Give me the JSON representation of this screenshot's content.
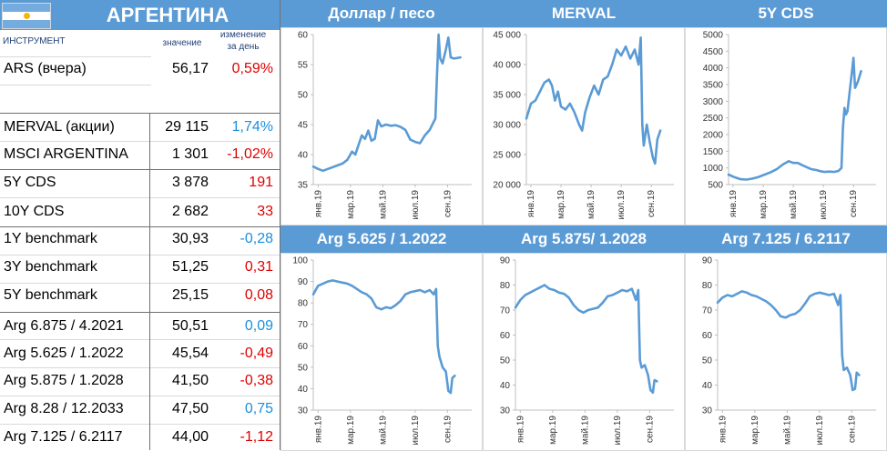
{
  "header": {
    "country": "АРГЕНТИНА",
    "col_instrument": "ИНСТРУМЕНТ",
    "col_value": "значение",
    "col_change": "изменение за день",
    "col_change_l1": "изменение",
    "col_change_l2": "за день"
  },
  "colors": {
    "accent": "#5b9bd5",
    "negative": "#e00000",
    "positive": "#1a8fe0",
    "line": "#5b9bd5"
  },
  "table": [
    {
      "name": "ARS (вчера)",
      "value": "56,17",
      "change": "0,59%",
      "dir": "neg"
    },
    {
      "name": "MERVAL (акции)",
      "value": "29 115",
      "change": "1,74%",
      "dir": "pos"
    },
    {
      "name": "MSCI ARGENTINA",
      "value": "1 301",
      "change": "-1,02%",
      "dir": "neg"
    },
    {
      "name": "5Y CDS",
      "value": "3 878",
      "change": "191",
      "dir": "neg"
    },
    {
      "name": "10Y CDS",
      "value": "2 682",
      "change": "33",
      "dir": "neg"
    },
    {
      "name": "1Y benchmark",
      "value": "30,93",
      "change": "-0,28",
      "dir": "pos"
    },
    {
      "name": "3Y benchmark",
      "value": "51,25",
      "change": "0,31",
      "dir": "neg"
    },
    {
      "name": "5Y benchmark",
      "value": "25,15",
      "change": "0,08",
      "dir": "neg"
    },
    {
      "name": "Arg 6.875 / 4.2021",
      "value": "50,51",
      "change": "0,09",
      "dir": "pos"
    },
    {
      "name": "Arg 5.625 / 1.2022",
      "value": "45,54",
      "change": "-0,49",
      "dir": "neg"
    },
    {
      "name": "Arg 5.875 / 1.2028",
      "value": "41,50",
      "change": "-0,38",
      "dir": "neg"
    },
    {
      "name": "Arg 8.28 / 12.2033",
      "value": "47,50",
      "change": "0,75",
      "dir": "pos"
    },
    {
      "name": "Arg 7.125 / 6.2117",
      "value": "44,00",
      "change": "-1,12",
      "dir": "neg"
    }
  ],
  "chart_data": [
    {
      "type": "line",
      "title": "Доллар / песо",
      "x_ticks": [
        "янв.19",
        "мар.19",
        "май.19",
        "июл.19",
        "сен.19"
      ],
      "y_ticks": [
        "35",
        "40",
        "45",
        "50",
        "55",
        "60"
      ],
      "ylim": [
        35,
        60
      ],
      "x_range": [
        0,
        9.8
      ],
      "points": [
        [
          0,
          38
        ],
        [
          0.3,
          37.6
        ],
        [
          0.6,
          37.3
        ],
        [
          0.9,
          37.6
        ],
        [
          1.2,
          37.9
        ],
        [
          1.5,
          38.2
        ],
        [
          1.8,
          38.5
        ],
        [
          2.1,
          39.1
        ],
        [
          2.4,
          40.5
        ],
        [
          2.6,
          40.0
        ],
        [
          2.8,
          41.6
        ],
        [
          3.0,
          43.2
        ],
        [
          3.2,
          42.6
        ],
        [
          3.4,
          44.0
        ],
        [
          3.6,
          42.3
        ],
        [
          3.8,
          42.6
        ],
        [
          4.0,
          45.7
        ],
        [
          4.2,
          44.7
        ],
        [
          4.5,
          45.0
        ],
        [
          4.8,
          44.8
        ],
        [
          5.1,
          44.9
        ],
        [
          5.4,
          44.6
        ],
        [
          5.7,
          44.1
        ],
        [
          6.0,
          42.5
        ],
        [
          6.3,
          42.1
        ],
        [
          6.6,
          41.9
        ],
        [
          6.9,
          43.2
        ],
        [
          7.2,
          44.1
        ],
        [
          7.4,
          45.2
        ],
        [
          7.55,
          46.0
        ],
        [
          7.65,
          53.0
        ],
        [
          7.75,
          60.0
        ],
        [
          7.85,
          56.0
        ],
        [
          8.0,
          55.2
        ],
        [
          8.2,
          57.5
        ],
        [
          8.35,
          59.5
        ],
        [
          8.5,
          56.2
        ],
        [
          8.7,
          56.0
        ],
        [
          9.1,
          56.2
        ]
      ]
    },
    {
      "type": "line",
      "title": "MERVAL",
      "x_ticks": [
        "янв.19",
        "мар.19",
        "май.19",
        "июл.19",
        "сен.19"
      ],
      "y_ticks": [
        "20 000",
        "25 000",
        "30 000",
        "35 000",
        "40 000",
        "45 000"
      ],
      "ylim": [
        20000,
        45000
      ],
      "x_range": [
        0,
        9.8
      ],
      "points": [
        [
          0,
          31000
        ],
        [
          0.3,
          33500
        ],
        [
          0.6,
          34000
        ],
        [
          0.9,
          35500
        ],
        [
          1.2,
          37000
        ],
        [
          1.5,
          37500
        ],
        [
          1.7,
          36500
        ],
        [
          1.9,
          34000
        ],
        [
          2.1,
          35500
        ],
        [
          2.3,
          33000
        ],
        [
          2.6,
          32500
        ],
        [
          2.9,
          33500
        ],
        [
          3.2,
          32000
        ],
        [
          3.5,
          30000
        ],
        [
          3.7,
          29000
        ],
        [
          3.9,
          32000
        ],
        [
          4.2,
          34500
        ],
        [
          4.5,
          36500
        ],
        [
          4.8,
          35000
        ],
        [
          5.1,
          37500
        ],
        [
          5.4,
          38000
        ],
        [
          5.7,
          40000
        ],
        [
          6.0,
          42500
        ],
        [
          6.3,
          41500
        ],
        [
          6.6,
          43000
        ],
        [
          6.9,
          41000
        ],
        [
          7.2,
          42500
        ],
        [
          7.45,
          40000
        ],
        [
          7.6,
          44500
        ],
        [
          7.7,
          30000
        ],
        [
          7.8,
          26500
        ],
        [
          8.0,
          30000
        ],
        [
          8.2,
          27000
        ],
        [
          8.4,
          24500
        ],
        [
          8.55,
          23500
        ],
        [
          8.7,
          27500
        ],
        [
          8.9,
          29000
        ]
      ]
    },
    {
      "type": "line",
      "title": "5Y CDS",
      "x_ticks": [
        "янв.19",
        "мар.19",
        "май.19",
        "июл.19",
        "сен.19"
      ],
      "y_ticks": [
        "500",
        "1000",
        "1500",
        "2000",
        "2500",
        "3000",
        "3500",
        "4000",
        "4500",
        "5000"
      ],
      "ylim": [
        500,
        5000
      ],
      "x_range": [
        0,
        9.8
      ],
      "points": [
        [
          0,
          800
        ],
        [
          0.4,
          720
        ],
        [
          0.8,
          660
        ],
        [
          1.2,
          650
        ],
        [
          1.6,
          680
        ],
        [
          2.0,
          730
        ],
        [
          2.4,
          800
        ],
        [
          2.8,
          870
        ],
        [
          3.2,
          960
        ],
        [
          3.6,
          1100
        ],
        [
          4.0,
          1200
        ],
        [
          4.3,
          1150
        ],
        [
          4.6,
          1150
        ],
        [
          4.9,
          1080
        ],
        [
          5.2,
          1020
        ],
        [
          5.5,
          960
        ],
        [
          5.8,
          940
        ],
        [
          6.1,
          900
        ],
        [
          6.4,
          880
        ],
        [
          6.7,
          890
        ],
        [
          7.0,
          880
        ],
        [
          7.3,
          910
        ],
        [
          7.5,
          1000
        ],
        [
          7.6,
          2200
        ],
        [
          7.7,
          2800
        ],
        [
          7.8,
          2600
        ],
        [
          7.9,
          2700
        ],
        [
          8.1,
          3500
        ],
        [
          8.2,
          3900
        ],
        [
          8.3,
          4300
        ],
        [
          8.4,
          3400
        ],
        [
          8.6,
          3600
        ],
        [
          8.8,
          3900
        ]
      ]
    },
    {
      "type": "line",
      "title": "Arg 5.625 / 1.2022",
      "x_ticks": [
        "янв.19",
        "мар.19",
        "май.19",
        "июл.19",
        "сен.19"
      ],
      "y_ticks": [
        "30",
        "40",
        "50",
        "60",
        "70",
        "80",
        "90",
        "100"
      ],
      "ylim": [
        30,
        100
      ],
      "x_range": [
        0,
        9.8
      ],
      "points": [
        [
          0,
          84
        ],
        [
          0.3,
          88
        ],
        [
          0.6,
          89
        ],
        [
          0.9,
          90
        ],
        [
          1.2,
          90.5
        ],
        [
          1.5,
          90
        ],
        [
          1.8,
          89.5
        ],
        [
          2.1,
          89
        ],
        [
          2.4,
          88
        ],
        [
          2.7,
          86.5
        ],
        [
          3.0,
          85
        ],
        [
          3.3,
          84
        ],
        [
          3.6,
          82
        ],
        [
          3.9,
          78
        ],
        [
          4.2,
          77
        ],
        [
          4.5,
          78
        ],
        [
          4.8,
          77.5
        ],
        [
          5.1,
          79
        ],
        [
          5.4,
          81
        ],
        [
          5.7,
          84
        ],
        [
          6.0,
          85
        ],
        [
          6.3,
          85.5
        ],
        [
          6.6,
          86
        ],
        [
          6.9,
          85
        ],
        [
          7.2,
          86
        ],
        [
          7.45,
          84
        ],
        [
          7.6,
          86.5
        ],
        [
          7.7,
          60
        ],
        [
          7.8,
          55
        ],
        [
          8.0,
          50
        ],
        [
          8.2,
          48
        ],
        [
          8.35,
          39
        ],
        [
          8.5,
          38
        ],
        [
          8.6,
          45
        ],
        [
          8.75,
          46
        ]
      ]
    },
    {
      "type": "line",
      "title": "Arg 5.875/ 1.2028",
      "x_ticks": [
        "янв.19",
        "мар.19",
        "май.19",
        "июл.19",
        "сен.19"
      ],
      "y_ticks": [
        "30",
        "40",
        "50",
        "60",
        "70",
        "80",
        "90"
      ],
      "ylim": [
        30,
        90
      ],
      "x_range": [
        0,
        9.8
      ],
      "points": [
        [
          0,
          71
        ],
        [
          0.3,
          74
        ],
        [
          0.6,
          76
        ],
        [
          0.9,
          77
        ],
        [
          1.2,
          78
        ],
        [
          1.5,
          79
        ],
        [
          1.8,
          80
        ],
        [
          2.1,
          78.5
        ],
        [
          2.4,
          78
        ],
        [
          2.7,
          77
        ],
        [
          3.0,
          76.5
        ],
        [
          3.3,
          75
        ],
        [
          3.6,
          72
        ],
        [
          3.9,
          70
        ],
        [
          4.2,
          69
        ],
        [
          4.5,
          70
        ],
        [
          4.8,
          70.5
        ],
        [
          5.1,
          71
        ],
        [
          5.4,
          73
        ],
        [
          5.7,
          75.5
        ],
        [
          6.0,
          76
        ],
        [
          6.3,
          77
        ],
        [
          6.6,
          78
        ],
        [
          6.9,
          77.5
        ],
        [
          7.2,
          78.5
        ],
        [
          7.45,
          74
        ],
        [
          7.6,
          78
        ],
        [
          7.7,
          50
        ],
        [
          7.8,
          47
        ],
        [
          8.0,
          48
        ],
        [
          8.2,
          44
        ],
        [
          8.35,
          38
        ],
        [
          8.5,
          37
        ],
        [
          8.6,
          42
        ],
        [
          8.75,
          41.5
        ]
      ]
    },
    {
      "type": "line",
      "title": "Arg 7.125 / 6.2117",
      "x_ticks": [
        "янв.19",
        "мар.19",
        "май.19",
        "июл.19",
        "сен.19"
      ],
      "y_ticks": [
        "30",
        "40",
        "50",
        "60",
        "70",
        "80",
        "90"
      ],
      "ylim": [
        30,
        90
      ],
      "x_range": [
        0,
        9.8
      ],
      "points": [
        [
          0,
          73
        ],
        [
          0.3,
          75
        ],
        [
          0.6,
          76
        ],
        [
          0.9,
          75.5
        ],
        [
          1.2,
          76.5
        ],
        [
          1.5,
          77.5
        ],
        [
          1.8,
          77
        ],
        [
          2.1,
          76
        ],
        [
          2.4,
          75.5
        ],
        [
          2.7,
          74.5
        ],
        [
          3.0,
          73.5
        ],
        [
          3.3,
          72
        ],
        [
          3.6,
          70
        ],
        [
          3.9,
          67.5
        ],
        [
          4.2,
          67
        ],
        [
          4.5,
          68
        ],
        [
          4.8,
          68.5
        ],
        [
          5.1,
          70
        ],
        [
          5.4,
          72.5
        ],
        [
          5.7,
          75.5
        ],
        [
          6.0,
          76.5
        ],
        [
          6.3,
          77
        ],
        [
          6.6,
          76.5
        ],
        [
          6.9,
          76
        ],
        [
          7.2,
          76.5
        ],
        [
          7.45,
          72
        ],
        [
          7.6,
          76
        ],
        [
          7.7,
          52
        ],
        [
          7.8,
          46
        ],
        [
          8.0,
          47
        ],
        [
          8.2,
          44
        ],
        [
          8.35,
          38
        ],
        [
          8.5,
          38.5
        ],
        [
          8.6,
          45
        ],
        [
          8.75,
          44
        ]
      ]
    }
  ]
}
